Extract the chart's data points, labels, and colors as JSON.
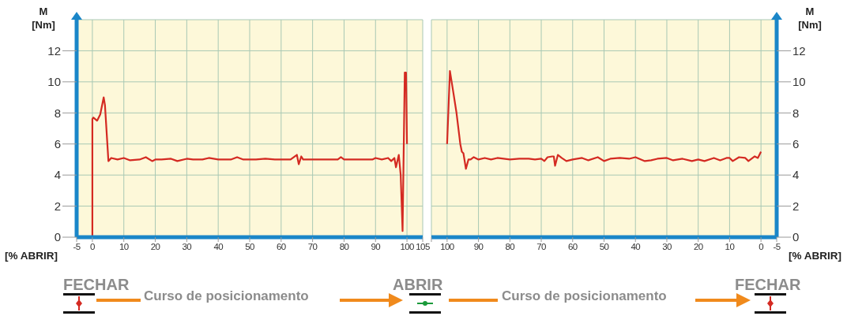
{
  "chart_data": [
    {
      "type": "line",
      "ylabel": "M\n[Nm]",
      "xlabel": "[% ABRIR]",
      "color": "#d42a22",
      "line_style": "solid",
      "marker": "none",
      "grid": true,
      "xlim": [
        -5,
        105
      ],
      "xticks": [
        -5,
        0,
        10,
        20,
        30,
        40,
        50,
        60,
        70,
        80,
        90,
        100,
        105
      ],
      "ylim": [
        0,
        14
      ],
      "yticks": [
        0,
        2,
        4,
        6,
        8,
        10,
        12
      ],
      "x": [
        0,
        0,
        0.3,
        1.5,
        2.5,
        3.6,
        4,
        5.1,
        6,
        8,
        10,
        12,
        15,
        17,
        19,
        20,
        22,
        25,
        27,
        30,
        32,
        35,
        37,
        40,
        44,
        46,
        48,
        52,
        55,
        58,
        63,
        65,
        65.6,
        66.4,
        67,
        70,
        78,
        79,
        80,
        85,
        89,
        90,
        92,
        94,
        95,
        96,
        96.5,
        97.4,
        98,
        98.6,
        99.3,
        99.7,
        100
      ],
      "values": [
        0,
        7.6,
        7.7,
        7.5,
        7.9,
        9.0,
        8.5,
        4.9,
        5.1,
        5.0,
        5.1,
        4.95,
        5.0,
        5.15,
        4.9,
        5.0,
        5.0,
        5.05,
        4.9,
        5.05,
        5.0,
        5.0,
        5.1,
        5.0,
        5.0,
        5.15,
        5.0,
        5.0,
        5.05,
        5.0,
        5.0,
        5.3,
        4.7,
        5.2,
        5.0,
        5.0,
        5.0,
        5.15,
        5.0,
        5.0,
        5.0,
        5.1,
        5.0,
        5.1,
        4.9,
        5.1,
        4.5,
        5.3,
        4.0,
        0.4,
        10.6,
        10.6,
        6.0
      ],
      "annotations": [
        "FECHAR",
        "Curso de posicionamento",
        "ABRIR"
      ]
    },
    {
      "type": "line",
      "ylabel": "M\n[Nm]",
      "xlabel": "[% ABRIR]",
      "color": "#d42a22",
      "line_style": "solid",
      "marker": "none",
      "grid": true,
      "xlim": [
        105,
        -5
      ],
      "xticks": [
        {
          "value": 105,
          "label": null
        },
        100,
        90,
        80,
        70,
        60,
        50,
        40,
        30,
        20,
        10,
        0,
        -5
      ],
      "ylim": [
        0,
        14
      ],
      "yticks": [
        0,
        2,
        4,
        6,
        8,
        10,
        12
      ],
      "x": [
        100,
        99.1,
        98,
        97,
        95.8,
        95.3,
        94.8,
        94,
        93.2,
        92.5,
        91.5,
        90,
        88,
        86,
        84,
        80,
        77,
        74,
        72,
        70,
        69,
        68,
        66.5,
        66,
        65.6,
        64.7,
        63.5,
        62,
        60,
        57,
        55,
        52,
        50,
        48,
        45,
        42,
        40,
        37,
        35,
        33,
        30,
        28,
        25,
        22,
        20,
        18,
        15,
        13,
        11,
        10,
        9,
        7,
        5,
        4,
        2,
        1,
        0
      ],
      "values": [
        6.0,
        10.7,
        9.3,
        8.0,
        6.0,
        5.5,
        5.4,
        4.4,
        5.0,
        5.0,
        5.15,
        5.0,
        5.1,
        5.0,
        5.1,
        5.0,
        5.05,
        5.05,
        5.0,
        5.05,
        4.9,
        5.15,
        5.2,
        5.2,
        4.6,
        5.3,
        5.1,
        4.9,
        5.0,
        5.1,
        4.95,
        5.15,
        4.9,
        5.05,
        5.1,
        5.05,
        5.15,
        4.9,
        4.95,
        5.05,
        5.1,
        4.95,
        5.05,
        4.9,
        5.0,
        4.9,
        5.1,
        4.95,
        5.1,
        5.1,
        4.9,
        5.15,
        5.1,
        4.9,
        5.2,
        5.1,
        5.5
      ],
      "annotations": [
        "Curso de posicionamento",
        "FECHAR"
      ]
    }
  ]
}
